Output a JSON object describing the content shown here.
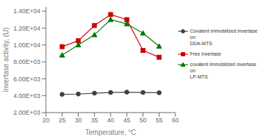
{
  "chart_data": {
    "type": "line",
    "title": "",
    "xlabel": "Temperature, °C",
    "ylabel": "Invertase activity, (U)",
    "x": [
      25,
      30,
      35,
      40,
      45,
      50,
      55
    ],
    "series": [
      {
        "name": "Covalent immobilized invertase on\nDDA-MTS",
        "color": "#404040",
        "marker": "circle",
        "values": [
          4150,
          4200,
          4300,
          4380,
          4420,
          4380,
          4350
        ]
      },
      {
        "name": "Free invertase",
        "color": "#cc0000",
        "marker": "square",
        "values": [
          9800,
          10500,
          12300,
          13600,
          13000,
          9350,
          8550
        ]
      },
      {
        "name": "covalent immobilized invertase on\nLP-MTS",
        "color": "#007700",
        "marker": "triangle",
        "values": [
          8800,
          10000,
          11200,
          13000,
          12500,
          11400,
          9850
        ]
      }
    ],
    "xlim": [
      20,
      60
    ],
    "xticks": [
      20,
      25,
      30,
      35,
      40,
      45,
      50,
      55,
      60
    ],
    "ylim": [
      2000,
      14500
    ],
    "yticks": [
      {
        "value": 2000,
        "label": "2.00E+03"
      },
      {
        "value": 4000,
        "label": "4.00E+03"
      },
      {
        "value": 6000,
        "label": "6.00E+03"
      },
      {
        "value": 8000,
        "label": "8.00E+03"
      },
      {
        "value": 10000,
        "label": "1.00E+04"
      },
      {
        "value": 12000,
        "label": "1.20E+04"
      },
      {
        "value": 14000,
        "label": "1.40E+04"
      }
    ],
    "grid": false,
    "legend": "right"
  }
}
